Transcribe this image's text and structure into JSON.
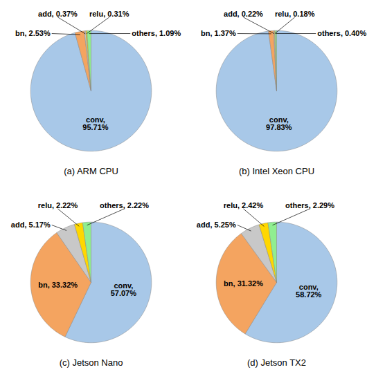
{
  "chart_data": [
    {
      "type": "pie",
      "title": "(a) ARM CPU",
      "categories": [
        "conv",
        "bn",
        "add",
        "relu",
        "others"
      ],
      "values": [
        95.71,
        2.53,
        0.37,
        0.31,
        1.09
      ],
      "value_labels": [
        "conv, 95.71%",
        "bn, 2.53%",
        "add, 0.37%",
        "relu, 0.31%",
        "others, 1.09%"
      ],
      "colors": [
        "#A8C8E8",
        "#F4A460",
        "#C8C8C8",
        "#FFD700",
        "#90EE90"
      ],
      "data_labels": true
    },
    {
      "type": "pie",
      "title": "(b) Intel Xeon CPU",
      "categories": [
        "conv",
        "bn",
        "add",
        "relu",
        "others"
      ],
      "values": [
        97.83,
        1.37,
        0.22,
        0.18,
        0.4
      ],
      "value_labels": [
        "conv, 97.83%",
        "bn, 1.37%",
        "add, 0.22%",
        "relu, 0.18%",
        "others, 0.40%"
      ],
      "colors": [
        "#A8C8E8",
        "#F4A460",
        "#C8C8C8",
        "#FFD700",
        "#90EE90"
      ],
      "data_labels": true
    },
    {
      "type": "pie",
      "title": "(c) Jetson Nano",
      "categories": [
        "conv",
        "bn",
        "add",
        "relu",
        "others"
      ],
      "values": [
        57.07,
        33.32,
        5.17,
        2.22,
        2.22
      ],
      "value_labels": [
        "conv, 57.07%",
        "bn, 33.32%",
        "add, 5.17%",
        "relu, 2.22%",
        "others, 2.22%"
      ],
      "colors": [
        "#A8C8E8",
        "#F4A460",
        "#C8C8C8",
        "#FFD700",
        "#90EE90"
      ],
      "data_labels": true
    },
    {
      "type": "pie",
      "title": "(d) Jetson TX2",
      "categories": [
        "conv",
        "bn",
        "add",
        "relu",
        "others"
      ],
      "values": [
        58.72,
        31.32,
        5.25,
        2.42,
        2.29
      ],
      "value_labels": [
        "conv, 58.72%",
        "bn, 31.32%",
        "add, 5.25%",
        "relu, 2.42%",
        "others, 2.29%"
      ],
      "colors": [
        "#A8C8E8",
        "#F4A460",
        "#C8C8C8",
        "#FFD700",
        "#90EE90"
      ],
      "data_labels": true
    }
  ]
}
